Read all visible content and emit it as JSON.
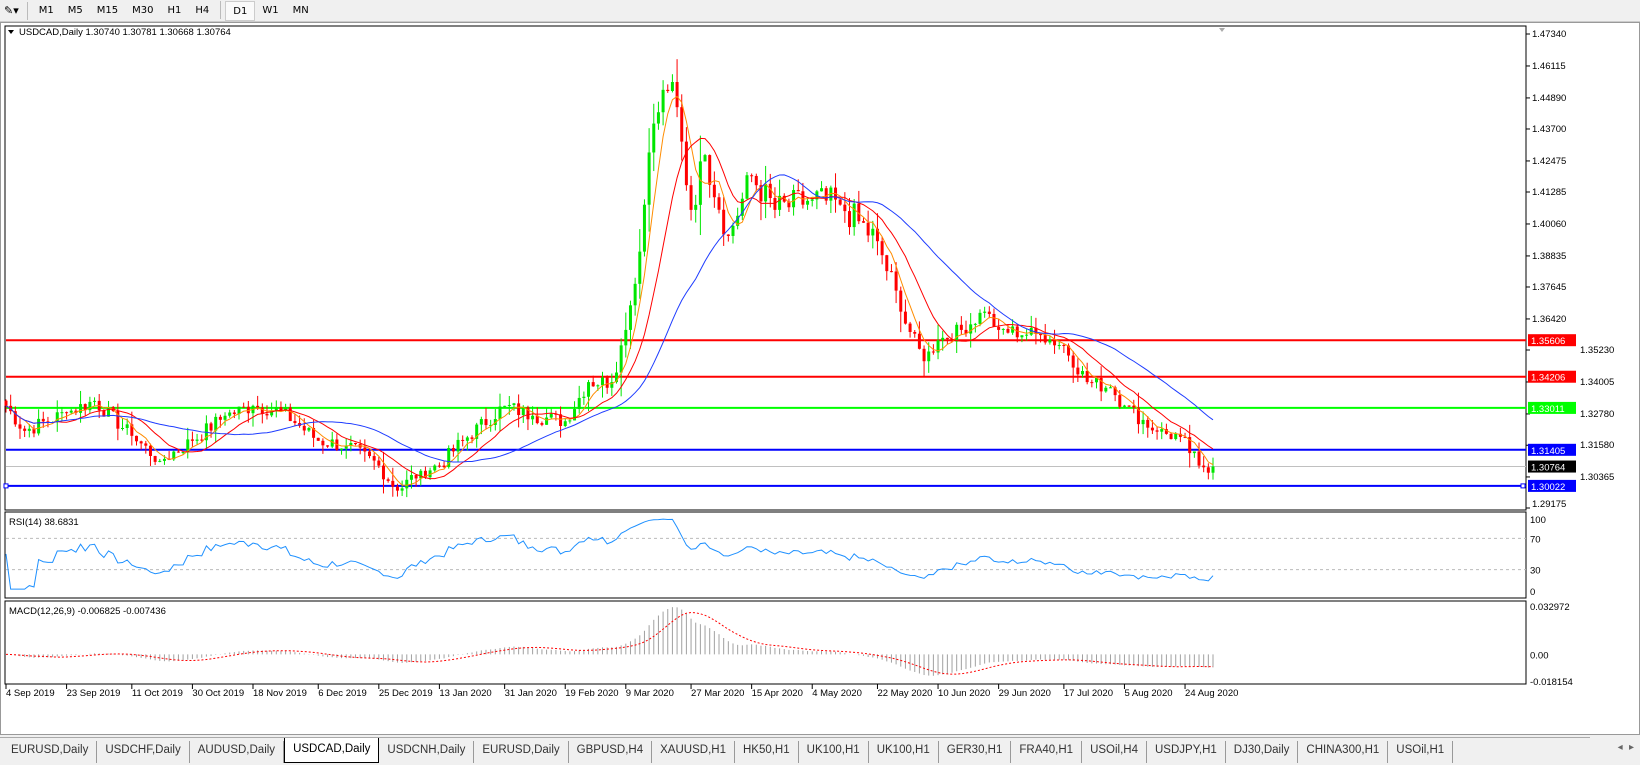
{
  "toolbar": {
    "timeframes": [
      "M1",
      "M5",
      "M15",
      "M30",
      "H1",
      "H4",
      "D1",
      "W1",
      "MN"
    ],
    "active": "D1"
  },
  "chart": {
    "header": "USDCAD,Daily  1.30740 1.30781 1.30668 1.30764",
    "symbol": "USDCAD",
    "period": "Daily",
    "ohlc": {
      "open": "1.30740",
      "high": "1.30781",
      "low": "1.30668",
      "close": "1.30764"
    },
    "price_axis": {
      "min": 1.29175,
      "max": 1.4734,
      "ticks": [
        "1.47340",
        "1.46115",
        "1.44890",
        "1.43700",
        "1.42475",
        "1.41285",
        "1.40060",
        "1.38835",
        "1.37645",
        "1.36420",
        "1.35230",
        "1.34005",
        "1.32780",
        "1.31580",
        "1.30365",
        "1.29175"
      ]
    },
    "levels": [
      {
        "price": 1.35606,
        "label": "1.35606",
        "color": "#ff0000"
      },
      {
        "price": 1.34206,
        "label": "1.34206",
        "color": "#ff0000"
      },
      {
        "price": 1.33011,
        "label": "1.33011",
        "color": "#00ff00"
      },
      {
        "price": 1.31405,
        "label": "1.31405",
        "color": "#0000ff"
      },
      {
        "price": 1.30022,
        "label": "1.30022",
        "color": "#0000ff"
      }
    ],
    "current_price": {
      "price": 1.30764,
      "label": "1.30764",
      "color": "#000000"
    },
    "colors": {
      "bull": "#00e600",
      "bear": "#ff0000",
      "ma_fast": "#ff8c00",
      "ma_mid": "#ff0000",
      "ma_slow": "#1e3cff",
      "rsi": "#1e90ff",
      "macd_signal": "#ff0000",
      "macd_hist": "#a0a0a0"
    }
  },
  "chart_data": {
    "type": "candlestick",
    "closes": [
      [
        "2019-09-04",
        1.3309
      ],
      [
        "2019-09-10",
        1.3213
      ],
      [
        "2019-09-23",
        1.3283
      ],
      [
        "2019-10-01",
        1.3328
      ],
      [
        "2019-10-11",
        1.3194
      ],
      [
        "2019-10-21",
        1.3098
      ],
      [
        "2019-10-30",
        1.3175
      ],
      [
        "2019-11-08",
        1.3271
      ],
      [
        "2019-11-18",
        1.3309
      ],
      [
        "2019-11-26",
        1.329
      ],
      [
        "2019-12-06",
        1.3175
      ],
      [
        "2019-12-16",
        1.3156
      ],
      [
        "2019-12-25",
        1.308
      ],
      [
        "2019-12-31",
        1.2984
      ],
      [
        "2020-01-07",
        1.306
      ],
      [
        "2020-01-13",
        1.308
      ],
      [
        "2020-01-20",
        1.3175
      ],
      [
        "2020-01-31",
        1.3309
      ],
      [
        "2020-02-10",
        1.3271
      ],
      [
        "2020-02-19",
        1.325
      ],
      [
        "2020-02-26",
        1.34
      ],
      [
        "2020-03-04",
        1.34
      ],
      [
        "2020-03-09",
        1.36
      ],
      [
        "2020-03-12",
        1.39
      ],
      [
        "2020-03-16",
        1.428
      ],
      [
        "2020-03-19",
        1.452
      ],
      [
        "2020-03-23",
        1.455
      ],
      [
        "2020-03-27",
        1.406
      ],
      [
        "2020-04-01",
        1.427
      ],
      [
        "2020-04-08",
        1.396
      ],
      [
        "2020-04-15",
        1.419
      ],
      [
        "2020-04-22",
        1.406
      ],
      [
        "2020-05-04",
        1.41
      ],
      [
        "2020-05-12",
        1.408
      ],
      [
        "2020-05-22",
        1.394
      ],
      [
        "2020-05-29",
        1.367
      ],
      [
        "2020-06-05",
        1.348
      ],
      [
        "2020-06-10",
        1.356
      ],
      [
        "2020-06-17",
        1.36
      ],
      [
        "2020-06-24",
        1.367
      ],
      [
        "2020-06-29",
        1.36
      ],
      [
        "2020-07-10",
        1.358
      ],
      [
        "2020-07-17",
        1.354
      ],
      [
        "2020-07-24",
        1.34
      ],
      [
        "2020-07-31",
        1.338
      ],
      [
        "2020-08-05",
        1.331
      ],
      [
        "2020-08-14",
        1.321
      ],
      [
        "2020-08-21",
        1.319
      ],
      [
        "2020-08-27",
        1.308
      ],
      [
        "2020-09-01",
        1.30764
      ]
    ],
    "moving_averages": [
      "orange fast",
      "red medium",
      "blue slow"
    ],
    "date_ticks": [
      [
        "2019-09-04",
        "4 Sep 2019"
      ],
      [
        "2019-09-23",
        "23 Sep 2019"
      ],
      [
        "2019-10-11",
        "11 Oct 2019"
      ],
      [
        "2019-10-30",
        "30 Oct 2019"
      ],
      [
        "2019-11-18",
        "18 Nov 2019"
      ],
      [
        "2019-12-06",
        "6 Dec 2019"
      ],
      [
        "2019-12-25",
        "25 Dec 2019"
      ],
      [
        "2020-01-13",
        "13 Jan 2020"
      ],
      [
        "2020-01-31",
        "31 Jan 2020"
      ],
      [
        "2020-02-19",
        "19 Feb 2020"
      ],
      [
        "2020-03-09",
        "9 Mar 2020"
      ],
      [
        "2020-03-27",
        "27 Mar 2020"
      ],
      [
        "2020-04-15",
        "15 Apr 2020"
      ],
      [
        "2020-05-04",
        "4 May 2020"
      ],
      [
        "2020-05-22",
        "22 May 2020"
      ],
      [
        "2020-06-10",
        "10 Jun 2020"
      ],
      [
        "2020-06-29",
        "29 Jun 2020"
      ],
      [
        "2020-07-17",
        "17 Jul 2020"
      ],
      [
        "2020-08-05",
        "5 Aug 2020"
      ],
      [
        "2020-08-24",
        "24 Aug 2020"
      ]
    ]
  },
  "rsi": {
    "label": "RSI(14) 38.6831",
    "ticks": [
      "100",
      "70",
      "30",
      "0"
    ],
    "levels": [
      70,
      30
    ]
  },
  "macd": {
    "label": "MACD(12,26,9) -0.006825 -0.007436",
    "ticks": [
      "0.032972",
      "0.00",
      "-0.018154"
    ],
    "max": 0.032972,
    "min": -0.018154
  },
  "tabs": [
    "EURUSD,Daily",
    "USDCHF,Daily",
    "AUDUSD,Daily",
    "USDCAD,Daily",
    "USDCNH,Daily",
    "EURUSD,Daily",
    "GBPUSD,H4",
    "XAUUSD,H1",
    "HK50,H1",
    "UK100,H1",
    "UK100,H1",
    "GER30,H1",
    "FRA40,H1",
    "USOil,H4",
    "USDJPY,H1",
    "DJ30,Daily",
    "CHINA300,H1",
    "USOil,H1"
  ],
  "active_tab": "USDCAD,Daily"
}
